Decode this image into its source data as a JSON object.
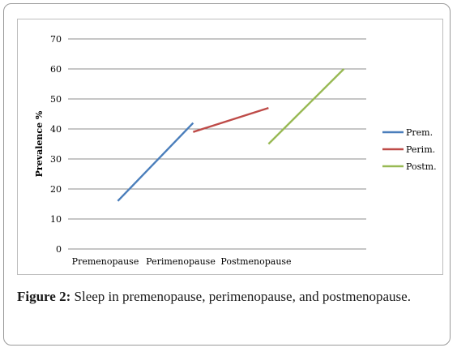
{
  "caption": {
    "label": "Figure 2:",
    "text": "Sleep in premenopause, perimenopause, and postmenopause."
  },
  "chart_data": {
    "type": "line",
    "ylabel": "Prevalence %",
    "xlabel": "",
    "categories": [
      "Premenopause",
      "Perimenopause",
      "Postmenopause"
    ],
    "ylim": [
      0,
      70
    ],
    "yticks": [
      0,
      10,
      20,
      30,
      40,
      50,
      60,
      70
    ],
    "grid": true,
    "legend_position": "right",
    "series": [
      {
        "name": "Prem.",
        "color": "#4a7ebb",
        "points": [
          [
            0,
            16
          ],
          [
            1,
            42
          ]
        ]
      },
      {
        "name": "Perim.",
        "color": "#be4b48",
        "points": [
          [
            1,
            39
          ],
          [
            2,
            47
          ]
        ]
      },
      {
        "name": "Postm.",
        "color": "#98b954",
        "points": [
          [
            2,
            35
          ],
          [
            3,
            60
          ]
        ]
      }
    ]
  }
}
